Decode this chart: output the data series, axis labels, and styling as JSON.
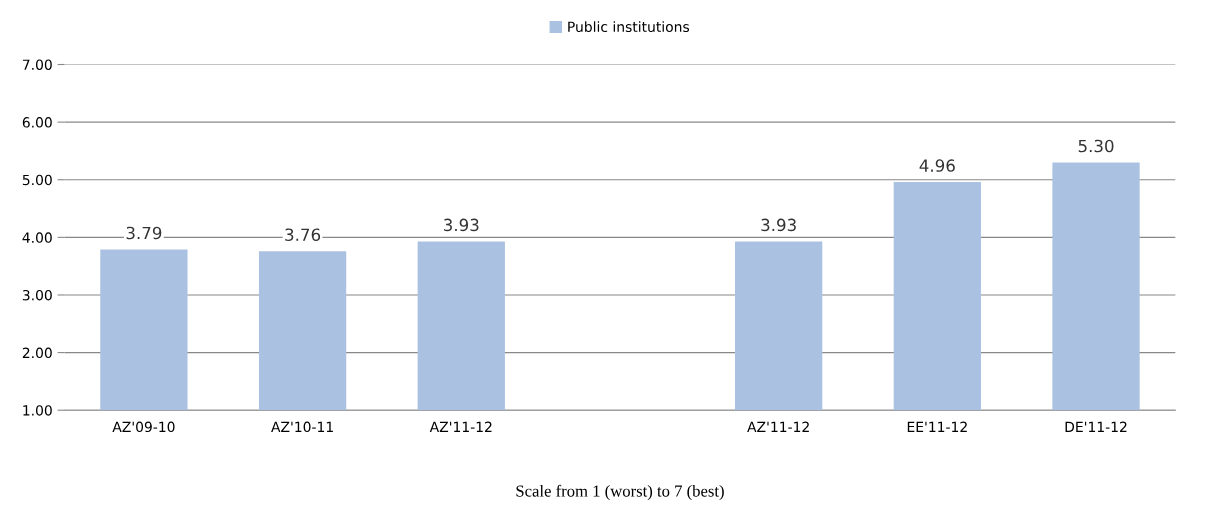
{
  "chart_data": {
    "type": "bar",
    "xlabel": "Scale from 1 (worst) to 7 (best)",
    "categories": [
      "AZ'09-10",
      "AZ'10-11",
      "AZ'11-12",
      null,
      "AZ'11-12",
      "EE'11-12",
      "DE'11-12"
    ],
    "series": [
      {
        "name": "Public institutions",
        "color": "#abc1e2",
        "values": [
          3.79,
          3.76,
          3.93,
          null,
          3.93,
          4.96,
          5.3
        ],
        "value_labels": [
          "3.79",
          "3.76",
          "3.93",
          null,
          "3.93",
          "4.96",
          "5.30"
        ]
      }
    ],
    "ylim": [
      1,
      7
    ],
    "yticks": [
      {
        "value": 1,
        "label": "1.00"
      },
      {
        "value": 2,
        "label": "2.00"
      },
      {
        "value": 3,
        "label": "3.00"
      },
      {
        "value": 4,
        "label": "4.00"
      },
      {
        "value": 5,
        "label": "5.00"
      },
      {
        "value": 6,
        "label": "6.00"
      },
      {
        "value": 7,
        "label": "7.00"
      }
    ],
    "grid": "y",
    "legend": "top"
  }
}
